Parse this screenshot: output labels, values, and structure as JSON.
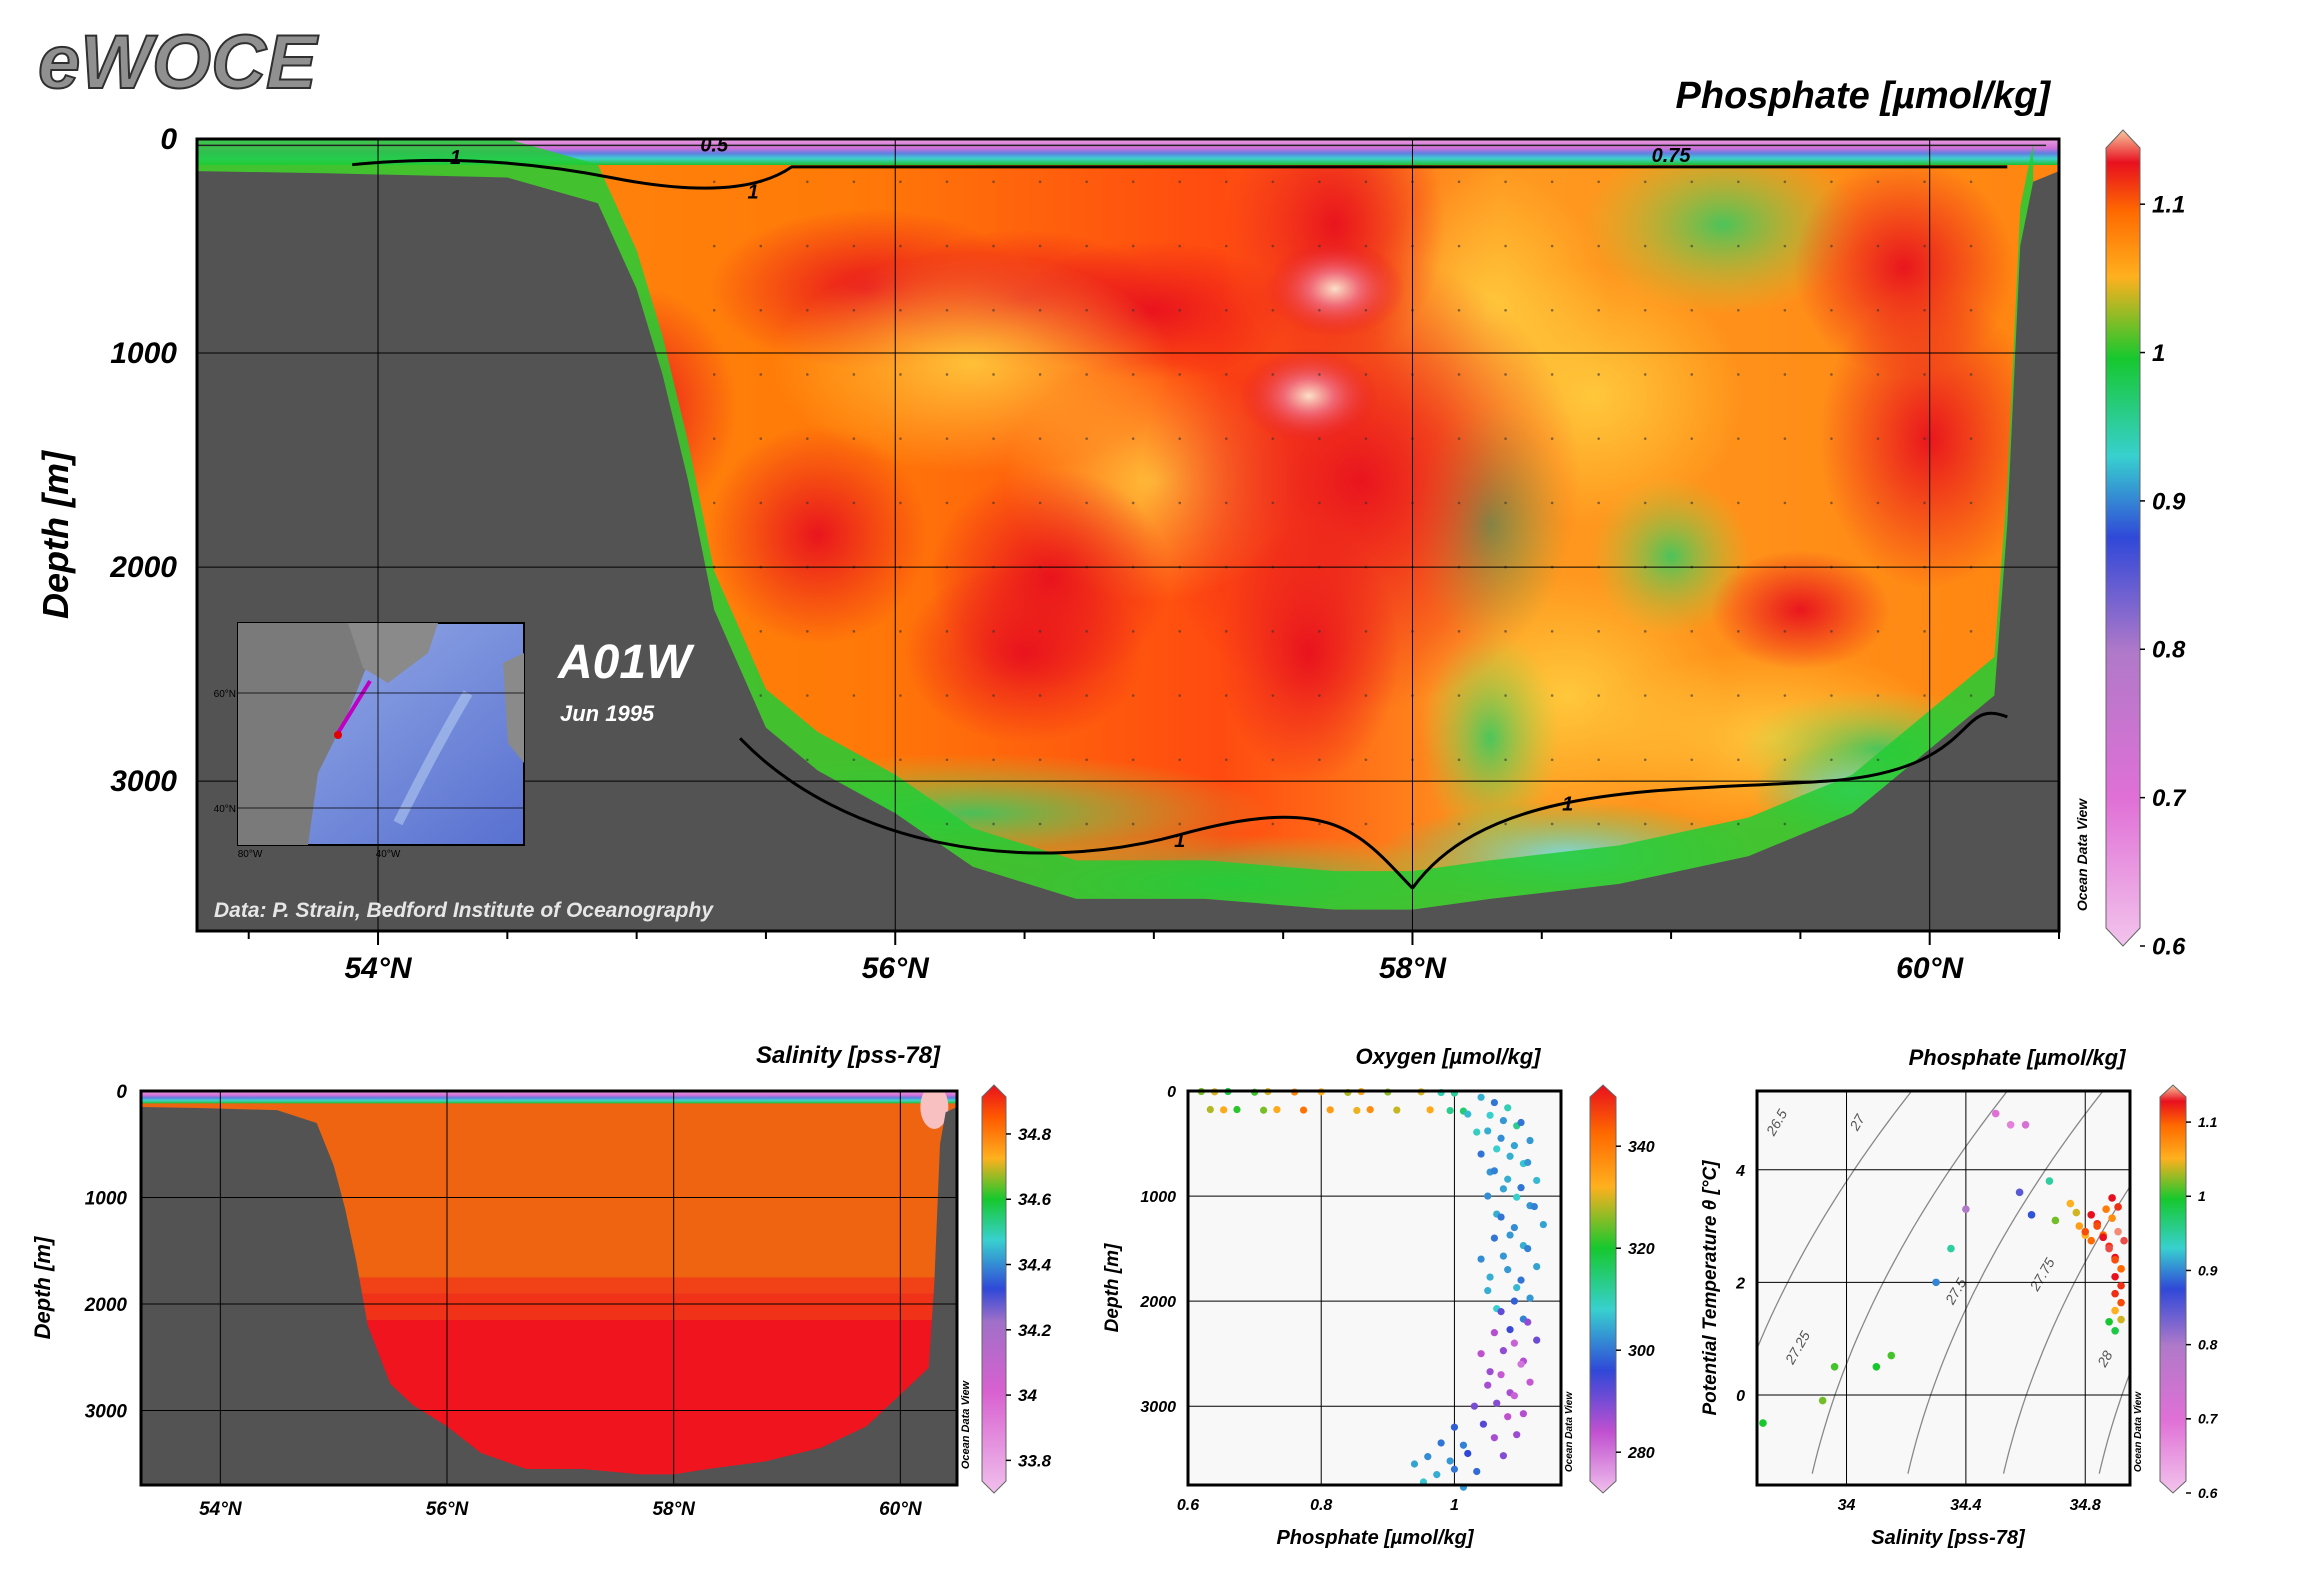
{
  "app": {
    "logo": "eWOCE",
    "section_name": "A01W",
    "section_date": "Jun 1995",
    "credit": "Data: P. Strain, Bedford Institute of Oceanography",
    "watermark": "Ocean Data View",
    "inset_map": {
      "lat_labels": [
        "60°N",
        "40°N"
      ],
      "lon_labels": [
        "80°W",
        "40°W"
      ]
    }
  },
  "chart_data": [
    {
      "type": "heatmap",
      "title": "Phosphate [µmol/kg]",
      "ylabel": "Depth [m]",
      "xlabel": "",
      "x_ticks": [
        "54°N",
        "56°N",
        "58°N",
        "60°N"
      ],
      "x_tick_values": [
        54,
        56,
        58,
        60
      ],
      "y_ticks": [
        "0",
        "1000",
        "2000",
        "3000"
      ],
      "y_tick_values": [
        0,
        1000,
        2000,
        3000
      ],
      "xlim": [
        53.3,
        60.5
      ],
      "ylim": [
        3700,
        0
      ],
      "colorbar_ticks": [
        "1.1",
        "1",
        "0.9",
        "0.8",
        "0.7",
        "0.6"
      ],
      "colorbar_values": [
        1.1,
        1.0,
        0.9,
        0.8,
        0.7,
        0.6
      ],
      "colorbar_range": [
        0.6,
        1.15
      ],
      "contour_labels": [
        "0.5",
        "0.75",
        "1",
        "1",
        "1",
        "1"
      ],
      "contour_label_values": [
        0.5,
        0.75,
        1,
        1,
        1,
        1
      ],
      "bottom_profile": [
        [
          53.3,
          150
        ],
        [
          53.8,
          160
        ],
        [
          54.5,
          180
        ],
        [
          54.85,
          300
        ],
        [
          55.0,
          700
        ],
        [
          55.1,
          1100
        ],
        [
          55.2,
          1600
        ],
        [
          55.3,
          2200
        ],
        [
          55.5,
          2750
        ],
        [
          55.7,
          2950
        ],
        [
          56.0,
          3150
        ],
        [
          56.3,
          3400
        ],
        [
          56.7,
          3550
        ],
        [
          57.2,
          3550
        ],
        [
          57.7,
          3600
        ],
        [
          58.0,
          3600
        ],
        [
          58.3,
          3550
        ],
        [
          58.8,
          3480
        ],
        [
          59.3,
          3350
        ],
        [
          59.7,
          3150
        ],
        [
          60.0,
          2850
        ],
        [
          60.25,
          2600
        ],
        [
          60.3,
          1800
        ],
        [
          60.35,
          500
        ],
        [
          60.4,
          200
        ]
      ],
      "data_features": [
        {
          "x": 57.7,
          "y": 700,
          "value": 1.15
        },
        {
          "x": 57.6,
          "y": 1200,
          "value": 1.14
        },
        {
          "x": 57.6,
          "y": 2400,
          "value": 1.12
        },
        {
          "x": 56.5,
          "y": 2400,
          "value": 1.11
        },
        {
          "x": 55.7,
          "y": 1850,
          "value": 1.1
        },
        {
          "x": 59.5,
          "y": 2200,
          "value": 1.1
        },
        {
          "x": 60.0,
          "y": 1400,
          "value": 1.11
        },
        {
          "x": 58.4,
          "y": 1700,
          "value": 1.02
        },
        {
          "x": 58.5,
          "y": 3350,
          "value": 0.93
        }
      ]
    },
    {
      "type": "heatmap",
      "title": "Salinity [pss-78]",
      "ylabel": "Depth [m]",
      "xlabel": "",
      "x_ticks": [
        "54°N",
        "56°N",
        "58°N",
        "60°N"
      ],
      "x_tick_values": [
        54,
        56,
        58,
        60
      ],
      "y_ticks": [
        "0",
        "1000",
        "2000",
        "3000"
      ],
      "y_tick_values": [
        0,
        1000,
        2000,
        3000
      ],
      "xlim": [
        53.3,
        60.5
      ],
      "ylim": [
        3700,
        0
      ],
      "colorbar_ticks": [
        "34.8",
        "34.6",
        "34.4",
        "34.2",
        "34",
        "33.8"
      ],
      "colorbar_values": [
        34.8,
        34.6,
        34.4,
        34.2,
        34.0,
        33.8
      ],
      "colorbar_range": [
        33.7,
        34.95
      ],
      "bottom_profile": [
        [
          53.3,
          150
        ],
        [
          53.8,
          160
        ],
        [
          54.5,
          180
        ],
        [
          54.85,
          300
        ],
        [
          55.0,
          700
        ],
        [
          55.1,
          1100
        ],
        [
          55.2,
          1600
        ],
        [
          55.3,
          2200
        ],
        [
          55.5,
          2750
        ],
        [
          55.7,
          2950
        ],
        [
          56.0,
          3150
        ],
        [
          56.3,
          3400
        ],
        [
          56.7,
          3550
        ],
        [
          57.2,
          3550
        ],
        [
          57.7,
          3600
        ],
        [
          58.0,
          3600
        ],
        [
          58.3,
          3550
        ],
        [
          58.8,
          3480
        ],
        [
          59.3,
          3350
        ],
        [
          59.7,
          3150
        ],
        [
          60.0,
          2850
        ],
        [
          60.25,
          2600
        ],
        [
          60.3,
          1800
        ],
        [
          60.35,
          500
        ],
        [
          60.4,
          200
        ]
      ],
      "layers": [
        {
          "depth_top": 0,
          "depth_bottom": 60,
          "value": 33.85
        },
        {
          "depth_top": 60,
          "depth_bottom": 1900,
          "value": 34.84
        },
        {
          "depth_top": 1900,
          "depth_bottom": 3700,
          "value": 34.92
        }
      ]
    },
    {
      "type": "scatter",
      "title": "Oxygen [µmol/kg]",
      "xlabel": "Phosphate [µmol/kg]",
      "ylabel": "Depth [m]",
      "x_ticks": [
        "0.6",
        "0.8",
        "1"
      ],
      "x_tick_values": [
        0.6,
        0.8,
        1.0
      ],
      "y_ticks": [
        "0",
        "1000",
        "2000",
        "3000"
      ],
      "y_tick_values": [
        0,
        1000,
        2000,
        3000
      ],
      "xlim": [
        0.6,
        1.16
      ],
      "ylim": [
        3750,
        0
      ],
      "colorbar_ticks": [
        "340",
        "320",
        "300",
        "280"
      ],
      "colorbar_values": [
        340,
        320,
        300,
        280
      ],
      "colorbar_range": [
        272,
        352
      ],
      "points": [
        [
          0.62,
          5,
          325
        ],
        [
          0.64,
          8,
          330
        ],
        [
          0.66,
          5,
          318
        ],
        [
          0.7,
          12,
          322
        ],
        [
          0.72,
          6,
          330
        ],
        [
          0.76,
          10,
          338
        ],
        [
          0.8,
          8,
          332
        ],
        [
          0.84,
          14,
          328
        ],
        [
          0.86,
          6,
          334
        ],
        [
          0.9,
          10,
          326
        ],
        [
          0.95,
          8,
          330
        ],
        [
          0.98,
          15,
          310
        ],
        [
          1.0,
          20,
          312
        ],
        [
          1.04,
          60,
          305
        ],
        [
          1.06,
          110,
          300
        ],
        [
          1.08,
          160,
          310
        ],
        [
          1.02,
          220,
          306
        ],
        [
          1.1,
          300,
          300
        ],
        [
          1.05,
          380,
          305
        ],
        [
          1.07,
          450,
          302
        ],
        [
          1.09,
          520,
          304
        ],
        [
          1.04,
          600,
          300
        ],
        [
          1.11,
          680,
          303
        ],
        [
          1.06,
          760,
          301
        ],
        [
          1.08,
          840,
          305
        ],
        [
          1.1,
          920,
          300
        ],
        [
          1.05,
          1000,
          302
        ],
        [
          1.12,
          1100,
          301
        ],
        [
          1.07,
          1200,
          300
        ],
        [
          1.09,
          1300,
          302
        ],
        [
          1.06,
          1400,
          300
        ],
        [
          1.11,
          1500,
          301
        ],
        [
          1.04,
          1600,
          302
        ],
        [
          1.08,
          1700,
          303
        ],
        [
          1.1,
          1800,
          300
        ],
        [
          1.05,
          1900,
          305
        ],
        [
          1.09,
          2000,
          298
        ],
        [
          1.07,
          2100,
          292
        ],
        [
          1.11,
          2200,
          288
        ],
        [
          1.06,
          2300,
          285
        ],
        [
          1.09,
          2400,
          282
        ],
        [
          1.04,
          2500,
          284
        ],
        [
          1.1,
          2600,
          280
        ],
        [
          1.07,
          2700,
          283
        ],
        [
          1.05,
          2800,
          286
        ],
        [
          1.09,
          2900,
          282
        ],
        [
          1.03,
          3000,
          290
        ],
        [
          1.08,
          3100,
          284
        ],
        [
          1.0,
          3200,
          298
        ],
        [
          1.06,
          3300,
          286
        ],
        [
          0.98,
          3350,
          300
        ],
        [
          1.02,
          3450,
          296
        ],
        [
          0.96,
          3480,
          302
        ],
        [
          0.94,
          3550,
          304
        ],
        [
          1.0,
          3600,
          300
        ]
      ]
    },
    {
      "type": "scatter",
      "title": "Phosphate [µmol/kg]",
      "xlabel": "Salinity [pss-78]",
      "ylabel": "Potential Temperature θ [°C]",
      "x_ticks": [
        "34",
        "34.4",
        "34.8"
      ],
      "x_tick_values": [
        34.0,
        34.4,
        34.8
      ],
      "y_ticks": [
        "4",
        "2",
        "0"
      ],
      "y_tick_values": [
        4,
        2,
        0
      ],
      "xlim": [
        33.7,
        34.95
      ],
      "ylim": [
        -1.6,
        5.4
      ],
      "colorbar_ticks": [
        "1.1",
        "1",
        "0.9",
        "0.8",
        "0.7",
        "0.6"
      ],
      "colorbar_values": [
        1.1,
        1.0,
        0.9,
        0.8,
        0.7,
        0.6
      ],
      "colorbar_range": [
        0.6,
        1.15
      ],
      "isopycnal_labels": [
        "26.5",
        "27",
        "27.25",
        "27.5",
        "27.75",
        "28"
      ],
      "isopycnal_values": [
        26.5,
        27.0,
        27.25,
        27.5,
        27.75,
        28.0
      ],
      "points": [
        [
          33.72,
          -0.5,
          1.0
        ],
        [
          33.92,
          -0.1,
          1.02
        ],
        [
          33.96,
          0.5,
          1.01
        ],
        [
          34.1,
          0.5,
          1.0
        ],
        [
          34.15,
          0.7,
          1.01
        ],
        [
          34.3,
          2.0,
          0.9
        ],
        [
          34.35,
          2.6,
          0.95
        ],
        [
          34.4,
          3.3,
          0.8
        ],
        [
          34.5,
          5.0,
          0.7
        ],
        [
          34.55,
          4.8,
          0.68
        ],
        [
          34.6,
          4.8,
          0.72
        ],
        [
          34.58,
          3.6,
          0.85
        ],
        [
          34.62,
          3.2,
          0.88
        ],
        [
          34.68,
          3.8,
          0.95
        ],
        [
          34.7,
          3.1,
          1.02
        ],
        [
          34.75,
          3.4,
          1.05
        ],
        [
          34.78,
          3.0,
          1.06
        ],
        [
          34.8,
          2.9,
          1.1
        ],
        [
          34.82,
          3.2,
          1.12
        ],
        [
          34.84,
          3.0,
          1.1
        ],
        [
          34.86,
          2.8,
          1.12
        ],
        [
          34.88,
          2.6,
          1.13
        ],
        [
          34.9,
          2.4,
          1.1
        ],
        [
          34.9,
          2.1,
          1.12
        ],
        [
          34.9,
          1.8,
          1.11
        ],
        [
          34.9,
          1.5,
          1.05
        ],
        [
          34.88,
          1.3,
          1.0
        ],
        [
          34.89,
          3.5,
          1.12
        ],
        [
          34.91,
          2.9,
          1.14
        ],
        [
          34.87,
          3.3,
          1.08
        ]
      ]
    }
  ]
}
